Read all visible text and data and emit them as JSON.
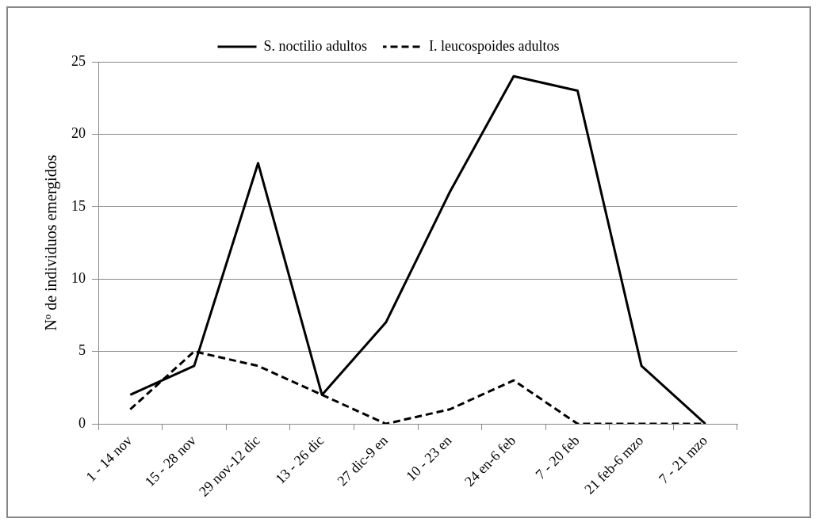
{
  "chart_data": {
    "type": "line",
    "ylabel": "Nº de individuos emergidos",
    "categories": [
      "1 - 14 nov",
      "15 - 28 nov",
      "29 nov-12 dic",
      "13 - 26 dic",
      "27 dic-9 en",
      "10 - 23 en",
      "24 en-6 feb",
      "7 - 20 feb",
      "21 feb-6 mzo",
      "7 - 21 mzo"
    ],
    "series": [
      {
        "name": "S. noctilio adultos",
        "color": "#000000",
        "line_style": "solid",
        "values": [
          2,
          4,
          18,
          2,
          7,
          16,
          24,
          23,
          4,
          0
        ]
      },
      {
        "name": "I. leucospoides adultos",
        "color": "#000000",
        "line_style": "dashed",
        "values": [
          1,
          5,
          4,
          2,
          0,
          1,
          3,
          0,
          0,
          0
        ]
      }
    ],
    "ylim": [
      0,
      25
    ],
    "yticks": [
      0,
      5,
      10,
      15,
      20,
      25
    ],
    "grid": "y",
    "legend": "top",
    "marker": "none"
  }
}
